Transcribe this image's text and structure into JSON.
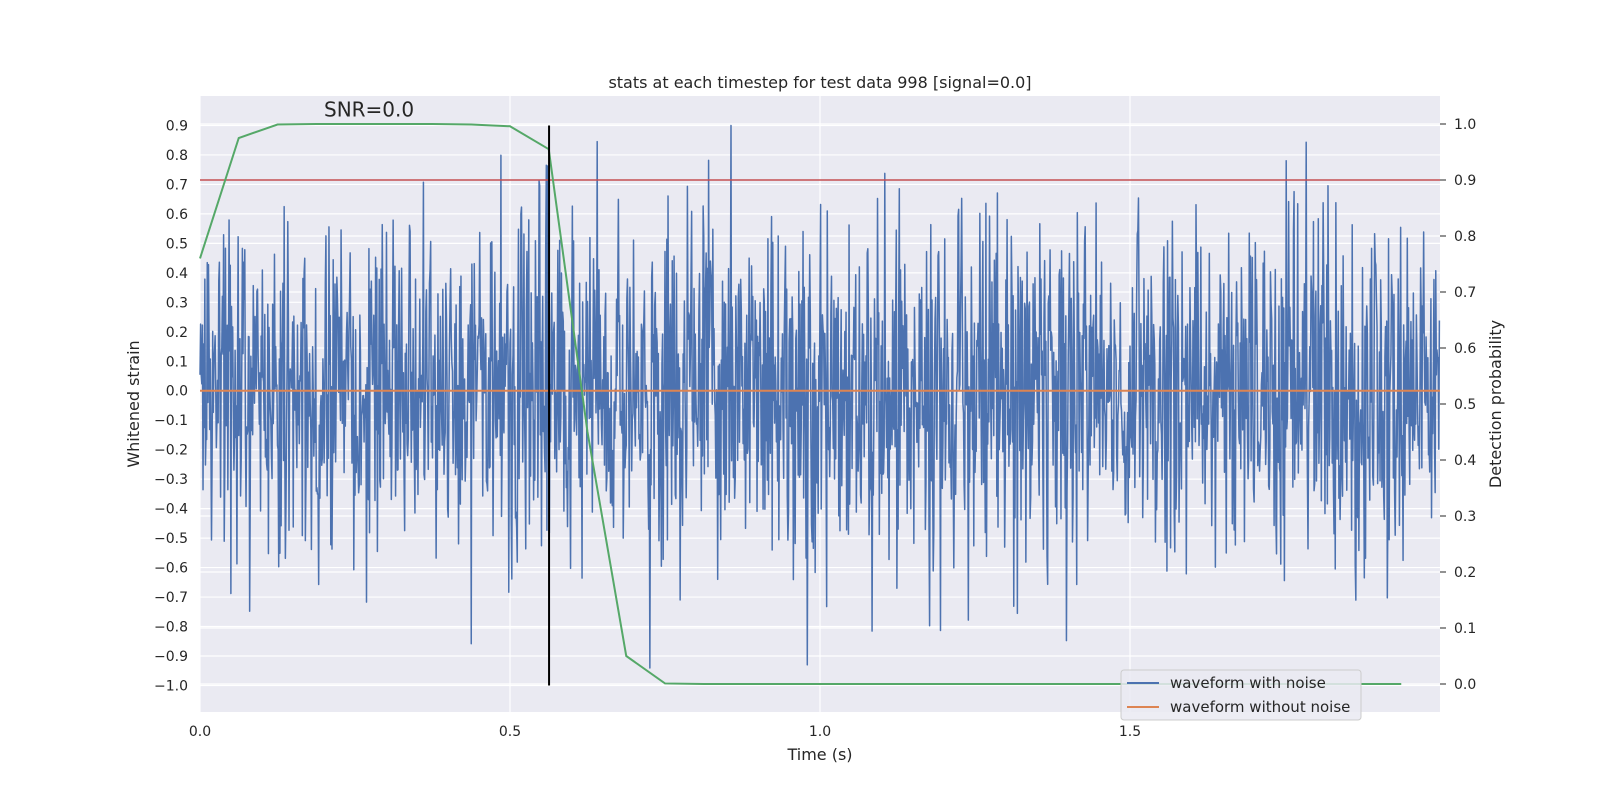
{
  "chart_data": {
    "type": "line",
    "title": "stats at each timestep for test data 998 [signal=0.0]",
    "xlabel": "Time (s)",
    "ylabel_left": "Whitened strain",
    "ylabel_right": "Detection probability",
    "xlim": [
      0.0,
      2.0
    ],
    "ylim_left": [
      -1.09,
      1.0
    ],
    "ylim_right": [
      -0.05,
      1.05
    ],
    "x_ticks": [
      0.0,
      0.5,
      1.0,
      1.5
    ],
    "x_tick_labels": [
      "0.0",
      "0.5",
      "1.0",
      "1.5"
    ],
    "y_left_ticks": [
      0.9,
      0.8,
      0.7,
      0.6,
      0.5,
      0.4,
      0.3,
      0.2,
      0.1,
      0.0,
      -0.1,
      -0.2,
      -0.3,
      -0.4,
      -0.5,
      -0.6,
      -0.7,
      -0.8,
      -0.9,
      -1.0
    ],
    "y_left_tick_labels": [
      "0.9",
      "0.8",
      "0.7",
      "0.6",
      "0.5",
      "0.4",
      "0.3",
      "0.2",
      "0.1",
      "0.0",
      "−0.1",
      "−0.2",
      "−0.3",
      "−0.4",
      "−0.5",
      "−0.6",
      "−0.7",
      "−0.8",
      "−0.9",
      "−1.0"
    ],
    "y_right_ticks": [
      1.0,
      0.9,
      0.8,
      0.7,
      0.6,
      0.5,
      0.4,
      0.3,
      0.2,
      0.1,
      0.0
    ],
    "y_right_tick_labels": [
      "1.0",
      "0.9",
      "0.8",
      "0.7",
      "0.6",
      "0.5",
      "0.4",
      "0.3",
      "0.2",
      "0.1",
      "0.0"
    ],
    "annotation": "SNR=0.0",
    "annotation_at": {
      "x": 0.2,
      "y": 0.93
    },
    "threshold_probability": 0.9,
    "marker_time": 0.563,
    "marker_ymin": -1.0,
    "marker_ymax": 0.9,
    "series": [
      {
        "name": "waveform with noise",
        "color": "#4c72b0",
        "axis": "left",
        "kind": "noise",
        "n_points": 2048,
        "x_range": [
          0.0,
          2.0
        ],
        "amplitude_std": 0.3,
        "min": -1.0,
        "max": 0.9
      },
      {
        "name": "waveform without noise",
        "color": "#dd8452",
        "axis": "left",
        "value": 0.0
      },
      {
        "name": "detection probability",
        "color": "#55a868",
        "axis": "right",
        "x": [
          0.0,
          0.0625,
          0.125,
          0.1875,
          0.25,
          0.3125,
          0.375,
          0.4375,
          0.5,
          0.5625,
          0.625,
          0.6875,
          0.75,
          0.8125,
          0.875,
          0.9375,
          1.0,
          1.0625,
          1.125,
          1.1875,
          1.25,
          1.3125,
          1.375,
          1.4375,
          1.5,
          1.5625,
          1.625,
          1.6875,
          1.75,
          1.8125,
          1.875,
          1.9375
        ],
        "y": [
          0.76,
          0.975,
          0.999,
          1.0,
          1.0,
          1.0,
          1.0,
          0.999,
          0.996,
          0.955,
          0.45,
          0.05,
          0.001,
          0.0,
          0.0,
          0.0,
          0.0,
          0.0,
          0.0,
          0.0,
          0.0,
          0.0,
          0.0,
          0.0,
          0.0,
          0.0,
          0.0,
          0.0,
          0.0,
          0.0,
          0.0,
          0.0
        ]
      },
      {
        "name": "threshold",
        "color": "#c44e52",
        "axis": "right",
        "value": 0.9
      }
    ],
    "legend": {
      "location": "lower-right",
      "entries": [
        {
          "label": "waveform with noise",
          "color": "#4c72b0"
        },
        {
          "label": "waveform without noise",
          "color": "#dd8452"
        }
      ]
    }
  }
}
